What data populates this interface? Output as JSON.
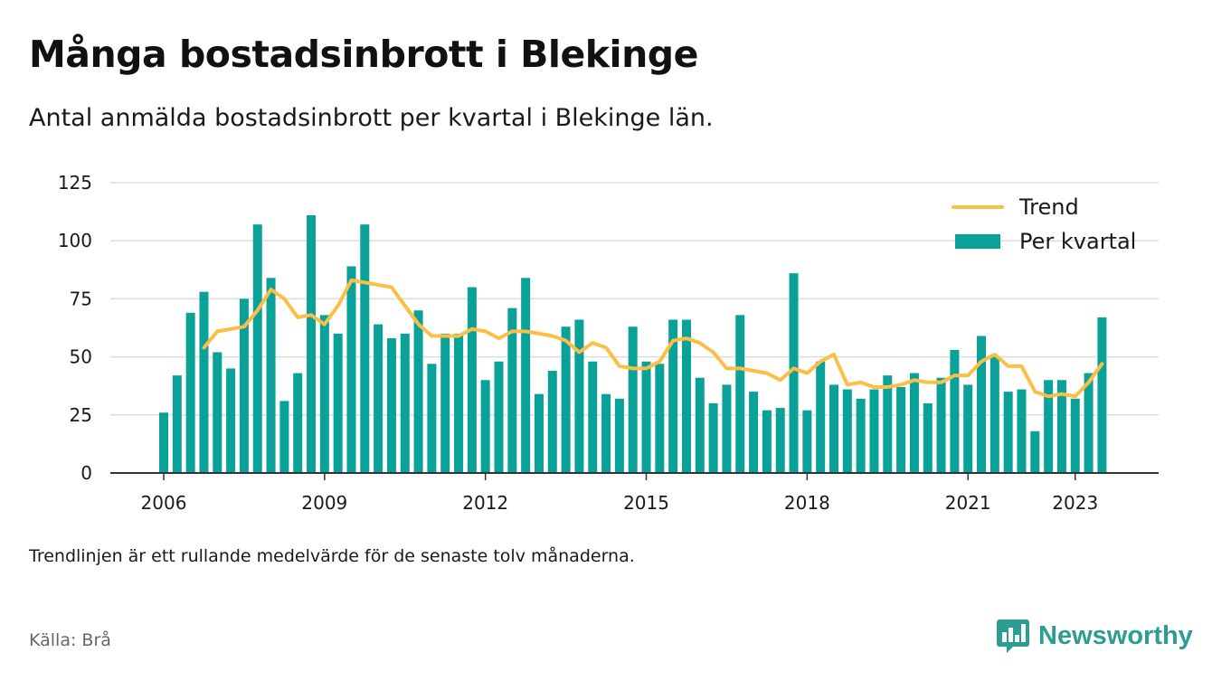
{
  "header": {
    "title": "Många bostadsinbrott i Blekinge",
    "subtitle": "Antal anmälda bostadsinbrott per kvartal i Blekinge län."
  },
  "footer": {
    "note": "Trendlinjen är ett rullande medelvärde för de senaste tolv månaderna.",
    "source": "Källa: Brå",
    "brand": "Newsworthy",
    "brand_icon": "bar-chart-speech-bubble-icon"
  },
  "colors": {
    "bar": "#0aa198",
    "trend": "#fbbf45",
    "grid": "#dddddd",
    "axis": "#333333",
    "brand": "#2c9d93"
  },
  "chart_data": {
    "type": "bar",
    "x_start": "2006 Q1",
    "xticks": [
      "2006",
      "2009",
      "2012",
      "2015",
      "2018",
      "2021",
      "2023"
    ],
    "yticks": [
      0,
      25,
      50,
      75,
      100,
      125
    ],
    "ylim": [
      0,
      125
    ],
    "grid": true,
    "legend_position": "top-right",
    "series": [
      {
        "name": "Per kvartal",
        "type": "bar",
        "values": [
          26,
          42,
          69,
          78,
          52,
          45,
          75,
          107,
          84,
          31,
          43,
          111,
          68,
          60,
          89,
          107,
          64,
          58,
          60,
          70,
          47,
          60,
          60,
          80,
          40,
          48,
          71,
          84,
          34,
          44,
          63,
          66,
          48,
          34,
          32,
          63,
          48,
          47,
          66,
          66,
          41,
          30,
          38,
          68,
          35,
          27,
          28,
          86,
          27,
          48,
          38,
          36,
          32,
          36,
          42,
          37,
          43,
          30,
          41,
          53,
          38,
          59,
          50,
          35,
          36,
          18,
          40,
          40,
          32,
          43,
          67
        ]
      },
      {
        "name": "Trend",
        "type": "line",
        "values": [
          null,
          null,
          null,
          54,
          61,
          62,
          63,
          70,
          79,
          75,
          67,
          68,
          64,
          72,
          83,
          82,
          81,
          80,
          72,
          64,
          59,
          59,
          59,
          62,
          61,
          58,
          61,
          61,
          60,
          59,
          57,
          52,
          56,
          54,
          46,
          45,
          45,
          48,
          57,
          58,
          56,
          52,
          45,
          45,
          44,
          43,
          40,
          45,
          43,
          48,
          51,
          38,
          39,
          37,
          37,
          38,
          40,
          39,
          39,
          42,
          42,
          48,
          51,
          46,
          46,
          35,
          33,
          34,
          33,
          39,
          47
        ]
      }
    ]
  }
}
